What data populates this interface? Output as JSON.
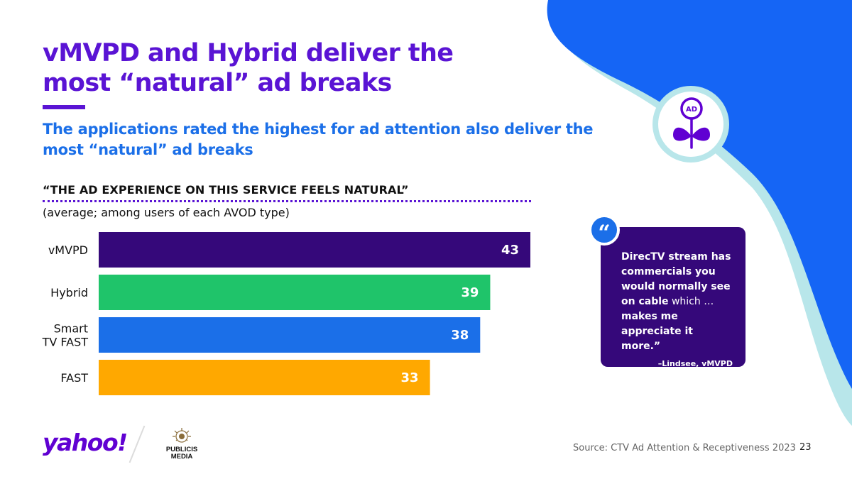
{
  "slide": {
    "title": "vMVPD and Hybrid deliver the most “natural” ad breaks",
    "subtitle": "The applications rated the highest for ad attention also deliver the most “natural” ad breaks",
    "survey_statement": "“THE AD EXPERIENCE ON THIS SERVICE FEELS NATURAL”",
    "chart_note": "(average; among users of each AVOD type)",
    "source": "Source: CTV Ad Attention & Receptiveness 2023",
    "page_number": "23"
  },
  "quote": {
    "mark": "“",
    "text_part1": "DirecTV stream has commercials you would normally see on cable",
    "text_part2": " which … ",
    "text_part3": "makes me appreciate it more.”",
    "attribution": "–Lindsee, vMVPD"
  },
  "icon": {
    "name": "flower-ad-icon",
    "badge_text": "AD"
  },
  "logos": {
    "yahoo": "yahoo!",
    "publicis_line1": "PUBLICIS",
    "publicis_line2": "MEDIA"
  },
  "colors": {
    "title_purple": "#5a14d4",
    "subtitle_blue": "#1b6fe8",
    "quote_card": "#35087a",
    "background_blue": "#1565f5",
    "background_teal": "#b8e6ea"
  },
  "chart_data": {
    "type": "bar",
    "orientation": "horizontal",
    "categories": [
      "vMVPD",
      "Hybrid",
      "Smart TV FAST",
      "FAST"
    ],
    "category_lines": [
      [
        "vMVPD"
      ],
      [
        "Hybrid"
      ],
      [
        "Smart",
        "TV FAST"
      ],
      [
        "FAST"
      ]
    ],
    "values": [
      43,
      39,
      38,
      33
    ],
    "bar_colors": [
      "#35087a",
      "#1fc46a",
      "#1b6fe8",
      "#ffa800"
    ],
    "xlim": [
      0,
      43
    ],
    "grid": false,
    "legend": "none",
    "data_labels": true
  }
}
